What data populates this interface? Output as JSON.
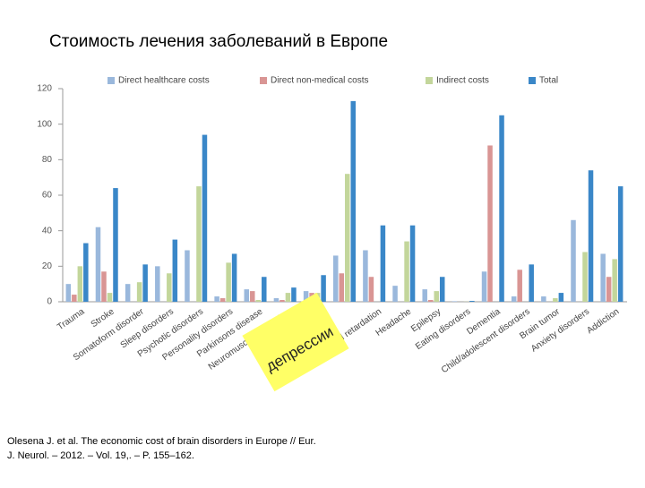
{
  "chart_data": {
    "type": "bar",
    "title": "Стоимость лечения заболеваний в Европе",
    "categories": [
      "Trauma",
      "Stroke",
      "Somatoform disorder",
      "Sleep disorders",
      "Psychotic disorders",
      "Personality disorders",
      "Parkinsons disease",
      "Neuromuscular disorders",
      null,
      null,
      "Mental retardation",
      "Headache",
      "Epilepsy",
      "Eating disorders",
      "Dementia",
      "Child/adolescent disorders",
      "Brain tumor",
      "Anxiety disorders",
      "Addiction"
    ],
    "series": [
      {
        "name": "Direct healthcare costs",
        "color": "#9ab8dc",
        "values": [
          10,
          42,
          10,
          20,
          29,
          3,
          7,
          2,
          6,
          26,
          29,
          9,
          7,
          0.3,
          17,
          3,
          3,
          46,
          27
        ]
      },
      {
        "name": "Direct non-medical costs",
        "color": "#d99594",
        "values": [
          4,
          17,
          0,
          0,
          0,
          2,
          6,
          1,
          5,
          16,
          14,
          0,
          1,
          0,
          88,
          18,
          0,
          0,
          14
        ]
      },
      {
        "name": "Indirect costs",
        "color": "#c3d69b",
        "values": [
          20,
          5,
          11,
          16,
          65,
          22,
          1,
          5,
          5,
          72,
          0,
          34,
          6,
          0.1,
          0,
          0,
          2,
          28,
          24
        ]
      },
      {
        "name": "Total",
        "color": "#3a87c8",
        "values": [
          33,
          64,
          21,
          35,
          94,
          27,
          14,
          8,
          15,
          113,
          43,
          43,
          14,
          0.5,
          105,
          21,
          5,
          74,
          65
        ]
      }
    ],
    "ylim": [
      0,
      120
    ],
    "yticks": [
      0,
      20,
      40,
      60,
      80,
      100,
      120
    ],
    "grid": false,
    "legend": "top",
    "annotation": "депрессии",
    "source": [
      "Olesena J. et al. The economic cost of brain disorders in Europe // Eur.",
      "J. Neurol. – 2012. – Vol. 19,. – P. 155–162."
    ]
  }
}
